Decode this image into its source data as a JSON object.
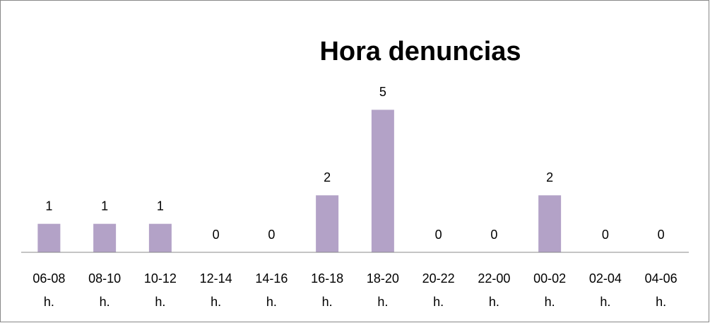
{
  "chart_data": {
    "type": "bar",
    "title": "Hora denuncias",
    "categories": [
      "06-08 h.",
      "08-10 h.",
      "10-12 h.",
      "12-14 h.",
      "14-16 h.",
      "16-18 h.",
      "18-20 h.",
      "20-22 h.",
      "22-00 h.",
      "00-02 h.",
      "02-04 h.",
      "04-06 h."
    ],
    "values": [
      1,
      1,
      1,
      0,
      0,
      2,
      5,
      0,
      0,
      2,
      0,
      0
    ],
    "color": "#b3a2c7",
    "ylim": [
      0,
      6
    ]
  }
}
